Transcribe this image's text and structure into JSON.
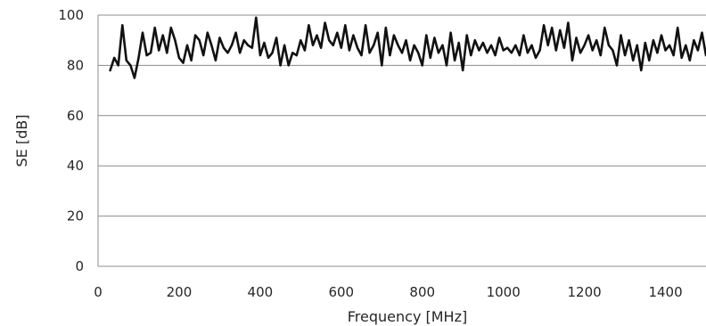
{
  "chart_data": {
    "type": "line",
    "title": "",
    "xlabel": "Frequency [MHz]",
    "ylabel": "SE [dB]",
    "xlim": [
      0,
      1500
    ],
    "ylim": [
      0,
      100
    ],
    "x_ticks": [
      0,
      200,
      400,
      600,
      800,
      1000,
      1200,
      1400
    ],
    "y_ticks": [
      0,
      20,
      40,
      60,
      80,
      100
    ],
    "x_tick_labels": [
      "0",
      "200",
      "400",
      "600",
      "800",
      "1000",
      "1200",
      "1400"
    ],
    "y_tick_labels": [
      "0",
      "20",
      "40",
      "60",
      "80",
      "100"
    ],
    "grid": "horizontal",
    "legend": "none",
    "line_color": "#111111",
    "series": [
      {
        "x": [
          30,
          40,
          50,
          60,
          70,
          80,
          90,
          100,
          110,
          120,
          130,
          140,
          150,
          160,
          170,
          180,
          190,
          200,
          210,
          220,
          230,
          240,
          250,
          260,
          270,
          280,
          290,
          300,
          310,
          320,
          330,
          340,
          350,
          360,
          370,
          380,
          390,
          400,
          410,
          420,
          430,
          440,
          450,
          460,
          470,
          480,
          490,
          500,
          510,
          520,
          530,
          540,
          550,
          560,
          570,
          580,
          590,
          600,
          610,
          620,
          630,
          640,
          650,
          660,
          670,
          680,
          690,
          700,
          710,
          720,
          730,
          740,
          750,
          760,
          770,
          780,
          790,
          800,
          810,
          820,
          830,
          840,
          850,
          860,
          870,
          880,
          890,
          900,
          910,
          920,
          930,
          940,
          950,
          960,
          970,
          980,
          990,
          1000,
          1010,
          1020,
          1030,
          1040,
          1050,
          1060,
          1070,
          1080,
          1090,
          1100,
          1110,
          1120,
          1130,
          1140,
          1150,
          1160,
          1170,
          1180,
          1190,
          1200,
          1210,
          1220,
          1230,
          1240,
          1250,
          1260,
          1270,
          1280,
          1290,
          1300,
          1310,
          1320,
          1330,
          1340,
          1350,
          1360,
          1370,
          1380,
          1390,
          1400,
          1410,
          1420,
          1430,
          1440,
          1450,
          1460,
          1470,
          1480,
          1490,
          1500
        ],
        "values": [
          78,
          83,
          80,
          96,
          82,
          80,
          75,
          83,
          93,
          84,
          85,
          95,
          86,
          92,
          85,
          95,
          90,
          83,
          81,
          88,
          82,
          92,
          90,
          84,
          93,
          88,
          82,
          91,
          87,
          85,
          88,
          93,
          85,
          90,
          88,
          87,
          99,
          84,
          89,
          83,
          85,
          91,
          80,
          88,
          80,
          85,
          84,
          90,
          86,
          96,
          88,
          92,
          87,
          97,
          90,
          88,
          93,
          87,
          96,
          86,
          92,
          87,
          84,
          96,
          85,
          88,
          93,
          80,
          95,
          84,
          92,
          88,
          85,
          90,
          82,
          88,
          85,
          80,
          92,
          83,
          91,
          85,
          88,
          80,
          93,
          82,
          89,
          78,
          92,
          84,
          90,
          86,
          89,
          85,
          88,
          84,
          91,
          86,
          87,
          85,
          88,
          84,
          92,
          85,
          88,
          83,
          86,
          96,
          88,
          95,
          86,
          94,
          87,
          97,
          82,
          91,
          85,
          88,
          92,
          86,
          90,
          84,
          95,
          88,
          86,
          80,
          92,
          84,
          90,
          82,
          88,
          78,
          89,
          82,
          90,
          85,
          92,
          86,
          88,
          84,
          95,
          83,
          88,
          82,
          90,
          86,
          93,
          84
        ]
      }
    ]
  }
}
